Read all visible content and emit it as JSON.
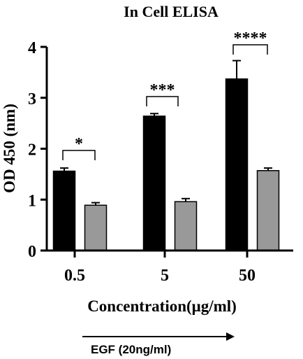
{
  "chart_data": {
    "type": "bar",
    "title": "In Cell ELISA",
    "xlabel": "Concentration(μg/ml)",
    "ylabel": "OD 450 (nm)",
    "ylim": [
      0,
      4
    ],
    "yticks": [
      "0",
      "1",
      "2",
      "3",
      "4"
    ],
    "categories": [
      "0.5",
      "5",
      "50"
    ],
    "series": [
      {
        "color": "#000000",
        "values": [
          1.56,
          2.64,
          3.37
        ],
        "errors": [
          0.06,
          0.05,
          0.36
        ]
      },
      {
        "color": "#999999",
        "values": [
          0.89,
          0.96,
          1.57
        ],
        "errors": [
          0.05,
          0.06,
          0.05
        ]
      }
    ],
    "significance": [
      "*",
      "***",
      "****"
    ],
    "annotation": "EGF (20ng/ml)",
    "grid": false,
    "legend": "none"
  }
}
